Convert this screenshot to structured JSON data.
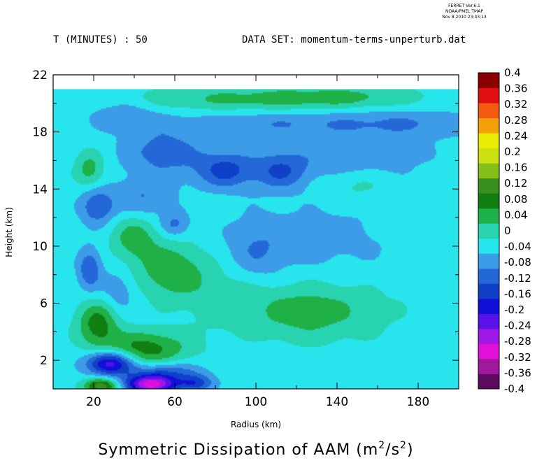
{
  "stamp": {
    "line1": "FERRET Ver.6.1",
    "line2": "NOAA/PMEL TMAP",
    "line3": "Nov 8 2010 23:43:13"
  },
  "header": {
    "time_label": "T (MINUTES) : 50",
    "dataset_label": "DATA SET: momentum-terms-unperturb.dat"
  },
  "chart_data": {
    "type": "heatmap",
    "title": "Symmetric Dissipation of AAM (m2/s2)",
    "title_main": "Symmetric Dissipation of AAM (m",
    "title_unit_a": "2",
    "title_mid": "/s",
    "title_unit_b": "2",
    "title_end": ")",
    "xlabel": "Radius (km)",
    "ylabel": "Height (km)",
    "xlim": [
      0,
      200
    ],
    "ylim": [
      0,
      22
    ],
    "data_top": 21,
    "x_ticks": [
      20,
      60,
      100,
      140,
      180
    ],
    "x_tick_labels": [
      "20",
      "60",
      "100",
      "140",
      "180"
    ],
    "x_minor": [
      0,
      40,
      80,
      120,
      160,
      200
    ],
    "y_ticks": [
      2,
      6,
      10,
      14,
      18,
      22
    ],
    "y_tick_labels": [
      "2",
      "6",
      "10",
      "14",
      "18",
      "22"
    ],
    "y_minor": [
      0,
      4,
      8,
      12,
      16,
      20
    ],
    "background_value": -0.02,
    "features": [
      {
        "x": 100,
        "y": 20.3,
        "sx": 45,
        "sy": 0.6,
        "v": 0.07
      },
      {
        "x": 145,
        "y": 20.5,
        "sx": 25,
        "sy": 0.5,
        "v": 0.04
      },
      {
        "x": 170,
        "y": 18.6,
        "sx": 30,
        "sy": 0.7,
        "v": -0.06
      },
      {
        "x": 100,
        "y": 18.6,
        "sx": 30,
        "sy": 0.6,
        "v": -0.05
      },
      {
        "x": 35,
        "y": 19.2,
        "sx": 12,
        "sy": 0.8,
        "v": -0.05
      },
      {
        "x": 55,
        "y": 16.6,
        "sx": 14,
        "sy": 1.2,
        "v": -0.08
      },
      {
        "x": 85,
        "y": 15.3,
        "sx": 10,
        "sy": 0.9,
        "v": -0.11
      },
      {
        "x": 112,
        "y": 15.2,
        "sx": 9,
        "sy": 0.9,
        "v": -0.09
      },
      {
        "x": 145,
        "y": 16.2,
        "sx": 28,
        "sy": 1.1,
        "v": -0.05
      },
      {
        "x": 18,
        "y": 15.4,
        "sx": 5,
        "sy": 0.9,
        "v": 0.08
      },
      {
        "x": 22,
        "y": 12.8,
        "sx": 6,
        "sy": 0.9,
        "v": -0.1
      },
      {
        "x": 45,
        "y": 13.4,
        "sx": 10,
        "sy": 1.0,
        "v": -0.06
      },
      {
        "x": 40,
        "y": 10.6,
        "sx": 8,
        "sy": 1.1,
        "v": 0.08
      },
      {
        "x": 60,
        "y": 11.5,
        "sx": 5,
        "sy": 0.6,
        "v": -0.07
      },
      {
        "x": 58,
        "y": 8.3,
        "sx": 12,
        "sy": 1.4,
        "v": 0.09
      },
      {
        "x": 85,
        "y": 6.5,
        "sx": 15,
        "sy": 1.8,
        "v": 0.04
      },
      {
        "x": 18,
        "y": 8.4,
        "sx": 4,
        "sy": 1.0,
        "v": -0.1
      },
      {
        "x": 32,
        "y": 6.8,
        "sx": 6,
        "sy": 1.1,
        "v": -0.05
      },
      {
        "x": 100,
        "y": 9.5,
        "sx": 10,
        "sy": 1.5,
        "v": -0.05
      },
      {
        "x": 122,
        "y": 5.4,
        "sx": 18,
        "sy": 1.4,
        "v": 0.07
      },
      {
        "x": 150,
        "y": 5.5,
        "sx": 20,
        "sy": 1.5,
        "v": 0.03
      },
      {
        "x": 130,
        "y": 10.5,
        "sx": 30,
        "sy": 1.8,
        "v": -0.035
      },
      {
        "x": 150,
        "y": 14.3,
        "sx": 12,
        "sy": 0.8,
        "v": 0.035
      },
      {
        "x": 22,
        "y": 4.6,
        "sx": 7,
        "sy": 1.1,
        "v": 0.12
      },
      {
        "x": 45,
        "y": 2.8,
        "sx": 15,
        "sy": 0.9,
        "v": 0.12
      },
      {
        "x": 28,
        "y": 1.8,
        "sx": 8,
        "sy": 0.6,
        "v": -0.22
      },
      {
        "x": 55,
        "y": 1.2,
        "sx": 12,
        "sy": 0.5,
        "v": -0.1
      },
      {
        "x": 24,
        "y": 0.2,
        "sx": 6,
        "sy": 0.4,
        "v": 0.18
      },
      {
        "x": 48,
        "y": 0.3,
        "sx": 9,
        "sy": 0.45,
        "v": -0.27
      },
      {
        "x": 70,
        "y": 0.4,
        "sx": 6,
        "sy": 0.4,
        "v": -0.12
      }
    ],
    "colorbar": {
      "levels": [
        -0.4,
        -0.36,
        -0.32,
        -0.28,
        -0.24,
        -0.2,
        -0.16,
        -0.12,
        -0.08,
        -0.04,
        0,
        0.04,
        0.08,
        0.12,
        0.16,
        0.2,
        0.24,
        0.28,
        0.32,
        0.36,
        0.4
      ],
      "labels_top_to_bottom": [
        "0.4",
        "0.36",
        "0.32",
        "0.28",
        "0.24",
        "0.2",
        "0.16",
        "0.12",
        "0.08",
        "0.04",
        "0",
        "-0.04",
        "-0.08",
        "-0.12",
        "-0.16",
        "-0.2",
        "-0.24",
        "-0.28",
        "-0.32",
        "-0.36",
        "-0.4"
      ],
      "colors_bottom_to_top": [
        "#5c0a5e",
        "#a0189c",
        "#e010d8",
        "#a018e8",
        "#5a10e8",
        "#1010d8",
        "#1040c8",
        "#2468d8",
        "#3c9ce8",
        "#28e4ec",
        "#28d4b0",
        "#20b048",
        "#107e10",
        "#389020",
        "#84c018",
        "#cce010",
        "#e8ec00",
        "#f4a008",
        "#f45a10",
        "#e01010",
        "#8a0000"
      ]
    }
  }
}
